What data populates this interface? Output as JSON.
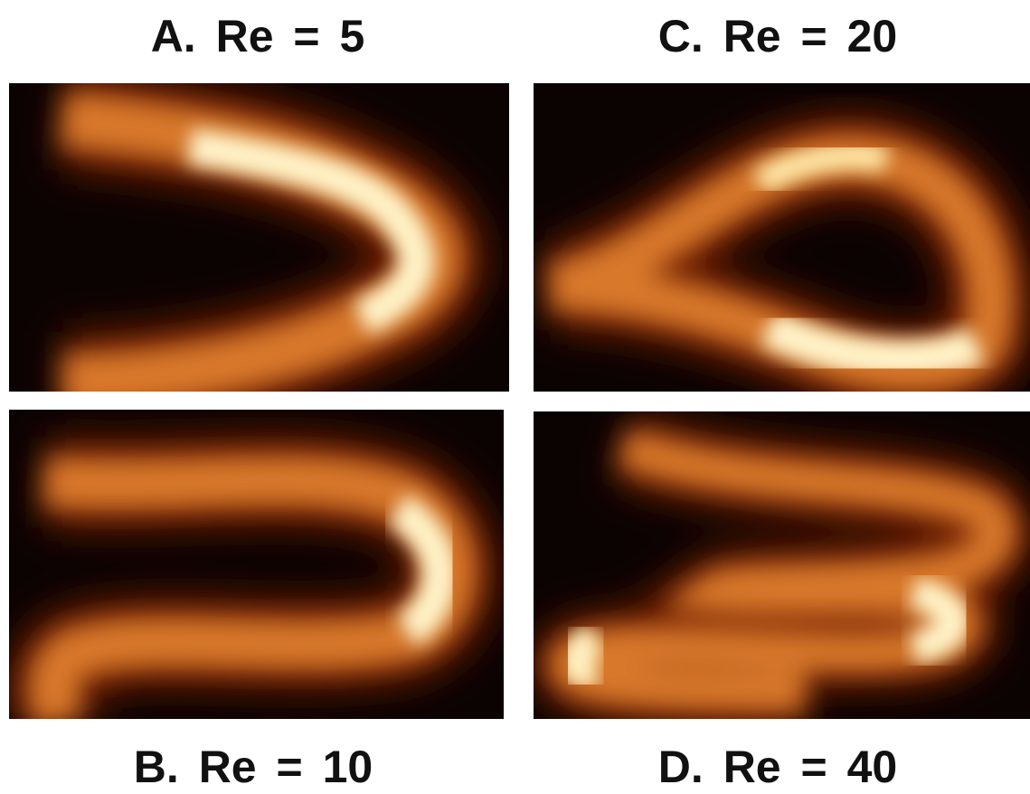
{
  "panels": [
    {
      "label": "A. Re = 5"
    },
    {
      "label": "B. Re = 10"
    },
    {
      "label": "C. Re = 20"
    },
    {
      "label": "D. Re = 40"
    }
  ]
}
